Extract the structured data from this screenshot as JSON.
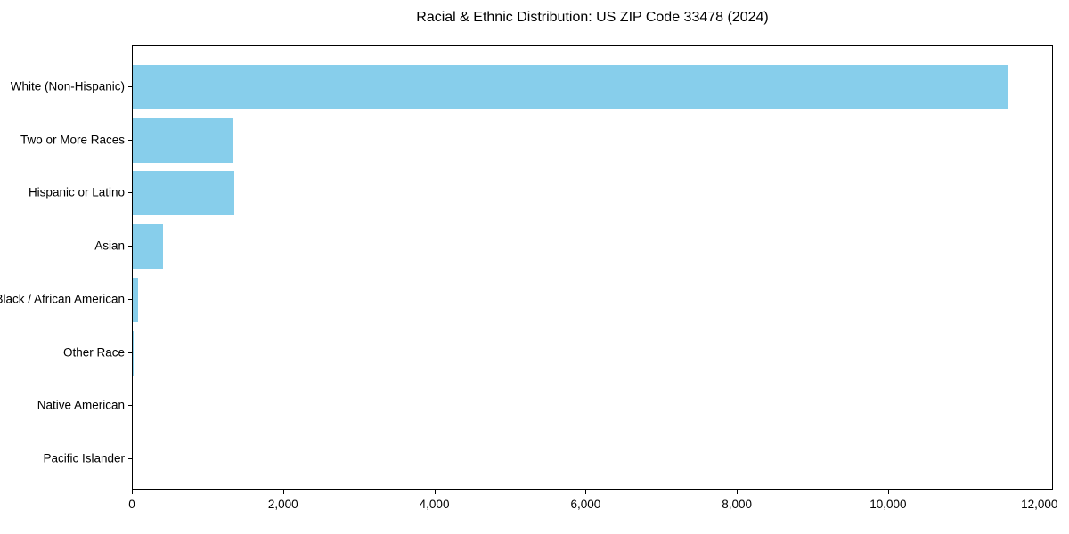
{
  "chart_data": {
    "type": "bar",
    "orientation": "horizontal",
    "title": "Racial & Ethnic Distribution: US ZIP Code 33478 (2024)",
    "categories": [
      "White (Non-Hispanic)",
      "Two or More Races",
      "Hispanic or Latino",
      "Asian",
      "Black / African American",
      "Other Race",
      "Native American",
      "Pacific Islander"
    ],
    "values": [
      11575,
      1325,
      1340,
      400,
      75,
      12,
      0,
      0
    ],
    "xlabel": "",
    "ylabel": "",
    "xlim": [
      0,
      12180
    ],
    "x_tick_values": [
      0,
      2000,
      4000,
      6000,
      8000,
      10000,
      12000
    ],
    "x_tick_labels": [
      "0",
      "2,000",
      "4,000",
      "6,000",
      "8,000",
      "10,000",
      "12,000"
    ],
    "bar_color": "#87CEEB",
    "grid": false,
    "legend_position": "none",
    "plot_background": "#ffffff"
  }
}
